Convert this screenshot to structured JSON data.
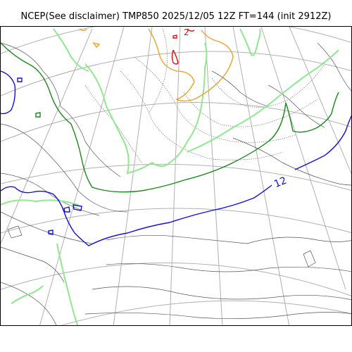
{
  "title": "NCEP(See disclaimer) TMP850 2025/12/05 12Z FT=144 (init 2912Z)",
  "contour_labels": {
    "blue": "12",
    "red": "2"
  },
  "colors": {
    "blue_isotherm": "#1111dd",
    "dark_green_isotherm": "#1a8a1a",
    "light_green_isotherm": "#90e890",
    "orange_isotherm": "#f0a020",
    "red_isotherm": "#dd1111",
    "grid": "#b0b0b0",
    "coastline": "#555555"
  }
}
